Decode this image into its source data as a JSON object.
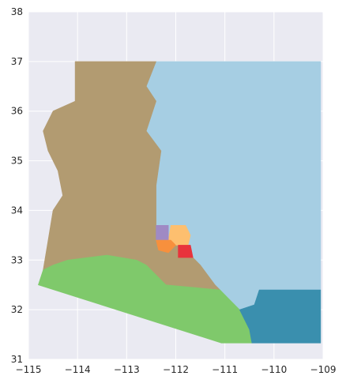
{
  "chart_data": {
    "type": "map",
    "title": "",
    "xlabel": "",
    "ylabel": "",
    "xlim": [
      -115,
      -109
    ],
    "ylim": [
      31,
      38
    ],
    "x_ticks": [
      "−115",
      "−114",
      "−113",
      "−112",
      "−111",
      "−110",
      "−109"
    ],
    "y_ticks": [
      "31",
      "32",
      "33",
      "34",
      "35",
      "36",
      "37",
      "38"
    ],
    "grid": true,
    "background_color": "#eaeaf2",
    "grid_color": "#ffffff",
    "regions": [
      {
        "color": "#a6cee3",
        "points": [
          [
            -112.4,
            37
          ],
          [
            -109.05,
            37
          ],
          [
            -109.05,
            32.4
          ],
          [
            -110.3,
            32.4
          ],
          [
            -110.4,
            32.1
          ],
          [
            -110.7,
            32.0
          ],
          [
            -110.9,
            32.2
          ],
          [
            -111.1,
            32.4
          ],
          [
            -111.2,
            32.5
          ],
          [
            -111.5,
            32.9
          ],
          [
            -111.7,
            33.1
          ],
          [
            -111.9,
            33.3
          ],
          [
            -112.2,
            33.3
          ],
          [
            -112.4,
            33.5
          ],
          [
            -112.4,
            34.5
          ],
          [
            -112.3,
            35.2
          ],
          [
            -112.6,
            35.6
          ],
          [
            -112.4,
            36.2
          ],
          [
            -112.6,
            36.5
          ],
          [
            -112.4,
            37
          ]
        ]
      },
      {
        "color": "#b29b71",
        "points": [
          [
            -114.05,
            37
          ],
          [
            -112.4,
            37
          ],
          [
            -112.6,
            36.5
          ],
          [
            -112.4,
            36.2
          ],
          [
            -112.6,
            35.6
          ],
          [
            -112.3,
            35.2
          ],
          [
            -112.4,
            34.5
          ],
          [
            -112.4,
            33.5
          ],
          [
            -112.2,
            33.3
          ],
          [
            -111.9,
            33.3
          ],
          [
            -111.7,
            33.1
          ],
          [
            -111.5,
            32.9
          ],
          [
            -111.2,
            32.5
          ],
          [
            -111.1,
            32.4
          ],
          [
            -112.2,
            32.5
          ],
          [
            -112.6,
            32.9
          ],
          [
            -112.8,
            33.0
          ],
          [
            -113.4,
            33.1
          ],
          [
            -114.2,
            33.0
          ],
          [
            -114.5,
            32.9
          ],
          [
            -114.7,
            32.8
          ],
          [
            -114.6,
            33.4
          ],
          [
            -114.5,
            34.0
          ],
          [
            -114.3,
            34.3
          ],
          [
            -114.4,
            34.8
          ],
          [
            -114.6,
            35.2
          ],
          [
            -114.7,
            35.6
          ],
          [
            -114.5,
            36.0
          ],
          [
            -114.05,
            36.2
          ],
          [
            -114.05,
            37
          ]
        ]
      },
      {
        "color": "#7fc96b",
        "points": [
          [
            -114.8,
            32.5
          ],
          [
            -114.7,
            32.8
          ],
          [
            -114.5,
            32.9
          ],
          [
            -114.2,
            33.0
          ],
          [
            -113.4,
            33.1
          ],
          [
            -112.8,
            33.0
          ],
          [
            -112.6,
            32.9
          ],
          [
            -112.2,
            32.5
          ],
          [
            -111.1,
            32.4
          ],
          [
            -110.9,
            32.2
          ],
          [
            -110.7,
            32.0
          ],
          [
            -110.5,
            31.6
          ],
          [
            -110.45,
            31.33
          ],
          [
            -111.07,
            31.33
          ],
          [
            -114.8,
            32.5
          ]
        ]
      },
      {
        "color": "#3a8fae",
        "points": [
          [
            -110.45,
            31.33
          ],
          [
            -109.05,
            31.33
          ],
          [
            -109.05,
            32.4
          ],
          [
            -110.3,
            32.4
          ],
          [
            -110.4,
            32.1
          ],
          [
            -110.7,
            32.0
          ],
          [
            -110.5,
            31.6
          ],
          [
            -110.45,
            31.33
          ]
        ]
      },
      {
        "color": "#fdbf6f",
        "points": [
          [
            -112.1,
            33.7
          ],
          [
            -111.8,
            33.7
          ],
          [
            -111.7,
            33.5
          ],
          [
            -111.75,
            33.3
          ],
          [
            -112.0,
            33.3
          ],
          [
            -112.15,
            33.4
          ],
          [
            -112.1,
            33.7
          ]
        ]
      },
      {
        "color": "#9f8ac4",
        "points": [
          [
            -112.4,
            33.7
          ],
          [
            -112.15,
            33.7
          ],
          [
            -112.15,
            33.4
          ],
          [
            -112.4,
            33.4
          ],
          [
            -112.4,
            33.7
          ]
        ]
      },
      {
        "color": "#f7903d",
        "points": [
          [
            -112.4,
            33.4
          ],
          [
            -112.1,
            33.4
          ],
          [
            -112.0,
            33.3
          ],
          [
            -112.15,
            33.15
          ],
          [
            -112.35,
            33.2
          ],
          [
            -112.4,
            33.4
          ]
        ]
      },
      {
        "color": "#e8333c",
        "points": [
          [
            -111.95,
            33.3
          ],
          [
            -111.7,
            33.3
          ],
          [
            -111.65,
            33.05
          ],
          [
            -111.95,
            33.05
          ],
          [
            -111.95,
            33.3
          ]
        ]
      }
    ]
  }
}
